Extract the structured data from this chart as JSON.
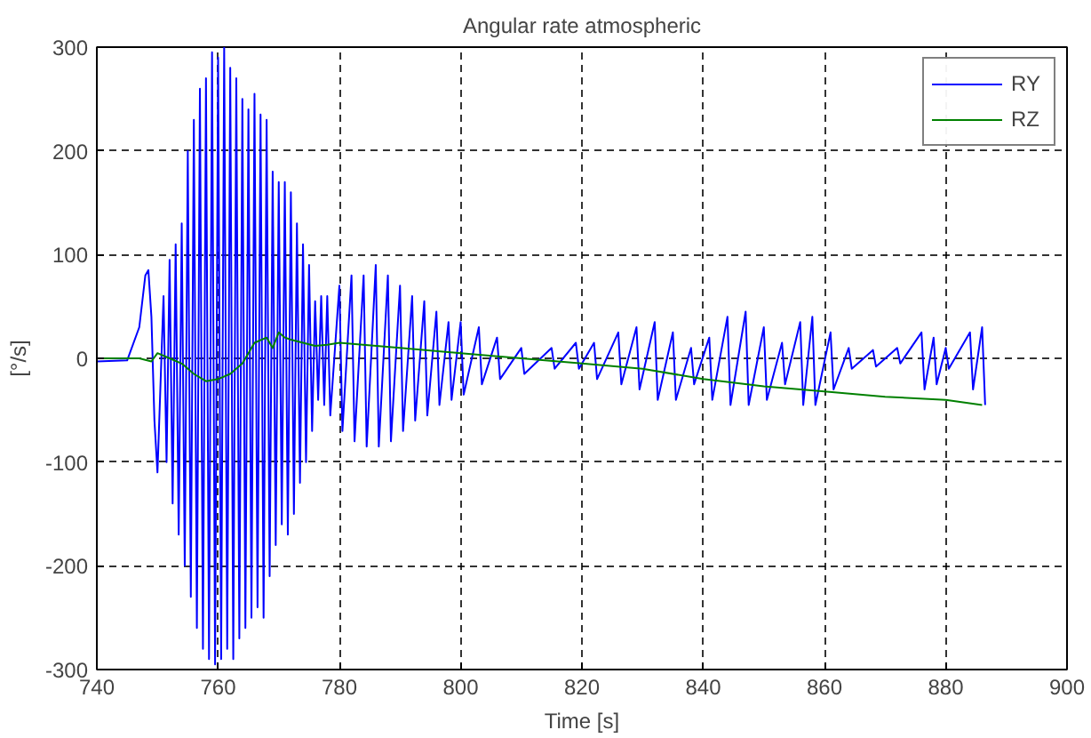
{
  "chart_data": {
    "type": "line",
    "title": "Angular rate atmospheric",
    "xlabel": "Time [s]",
    "ylabel": "[°/s]",
    "xlim": [
      740,
      900
    ],
    "ylim": [
      -300,
      300
    ],
    "xticks": [
      740,
      760,
      780,
      800,
      820,
      840,
      860,
      880,
      900
    ],
    "yticks": [
      -300,
      -200,
      -100,
      0,
      100,
      200,
      300
    ],
    "grid": true,
    "legend": "top right",
    "line_style": "solid",
    "series": [
      {
        "name": "RY",
        "color": "#0000ff",
        "x": [
          740,
          745,
          747,
          748,
          748.5,
          749,
          749.5,
          750,
          751,
          751.5,
          752,
          752.5,
          753,
          753.5,
          754,
          754.5,
          755,
          755.5,
          756,
          756.5,
          757,
          757.5,
          758,
          758.5,
          759,
          759.5,
          760,
          760.5,
          761,
          761.5,
          762,
          762.5,
          763,
          763.5,
          764,
          764.5,
          765,
          765.5,
          766,
          766.5,
          767,
          767.5,
          768,
          768.5,
          769,
          769.5,
          770,
          770.5,
          771,
          771.5,
          772,
          772.5,
          773,
          773.5,
          774,
          774.5,
          775,
          775.5,
          776,
          776.5,
          777,
          777.5,
          778,
          778.5,
          780,
          780.5,
          782,
          782.5,
          784,
          784.5,
          786,
          786.5,
          788,
          788.5,
          790,
          790.5,
          792,
          792.5,
          794,
          794.5,
          796,
          796.5,
          798,
          798.5,
          800,
          800.5,
          803,
          803.5,
          806,
          806.5,
          810,
          810.5,
          815,
          815.5,
          819,
          819.5,
          822,
          822.5,
          826,
          826.5,
          829,
          829.5,
          832,
          832.5,
          835,
          835.5,
          838,
          838.5,
          841,
          841.5,
          844,
          844.5,
          847,
          847.5,
          850,
          850.5,
          853,
          853.5,
          856,
          856.5,
          858,
          858.5,
          861,
          861.5,
          864,
          864.5,
          868,
          868.5,
          872,
          872.5,
          876,
          876.5,
          878,
          878.5,
          880,
          880.5,
          884,
          884.5,
          886,
          886.5
        ],
        "values": [
          -3,
          -2,
          30,
          80,
          85,
          40,
          -60,
          -110,
          60,
          -100,
          95,
          -140,
          110,
          -170,
          130,
          -200,
          200,
          -230,
          230,
          -260,
          260,
          -280,
          270,
          -290,
          295,
          -295,
          290,
          -290,
          300,
          -280,
          280,
          -290,
          270,
          -270,
          250,
          -260,
          240,
          -250,
          255,
          -240,
          235,
          -250,
          230,
          -210,
          180,
          -180,
          170,
          -160,
          170,
          -170,
          160,
          -150,
          130,
          -120,
          110,
          -100,
          90,
          -70,
          55,
          -40,
          60,
          -45,
          60,
          -55,
          70,
          -70,
          80,
          -80,
          80,
          -85,
          90,
          -85,
          80,
          -80,
          70,
          -70,
          60,
          -60,
          55,
          -55,
          45,
          -45,
          35,
          -40,
          35,
          -35,
          30,
          -25,
          20,
          -20,
          10,
          -15,
          10,
          -10,
          15,
          -10,
          15,
          -20,
          25,
          -25,
          30,
          -30,
          35,
          -40,
          25,
          -40,
          10,
          -25,
          20,
          -40,
          40,
          -45,
          45,
          -45,
          30,
          -40,
          15,
          -25,
          35,
          -45,
          40,
          -45,
          25,
          -30,
          10,
          -10,
          8,
          -8,
          10,
          -5,
          25,
          -30,
          20,
          -25,
          10,
          -10,
          25,
          -30,
          30,
          -45
        ]
      },
      {
        "name": "RZ",
        "color": "#008000",
        "x": [
          740,
          747,
          749,
          750,
          752,
          754,
          756,
          758,
          760,
          762,
          764,
          765,
          766,
          768,
          769,
          770,
          771,
          772,
          774,
          776,
          778,
          780,
          790,
          800,
          810,
          820,
          830,
          840,
          850,
          860,
          870,
          880,
          886
        ],
        "values": [
          0,
          0,
          -3,
          5,
          0,
          -5,
          -15,
          -22,
          -20,
          -15,
          -5,
          5,
          15,
          20,
          10,
          25,
          20,
          18,
          15,
          12,
          13,
          15,
          10,
          5,
          0,
          -5,
          -10,
          -20,
          -27,
          -32,
          -37,
          -40,
          -45
        ]
      }
    ]
  }
}
